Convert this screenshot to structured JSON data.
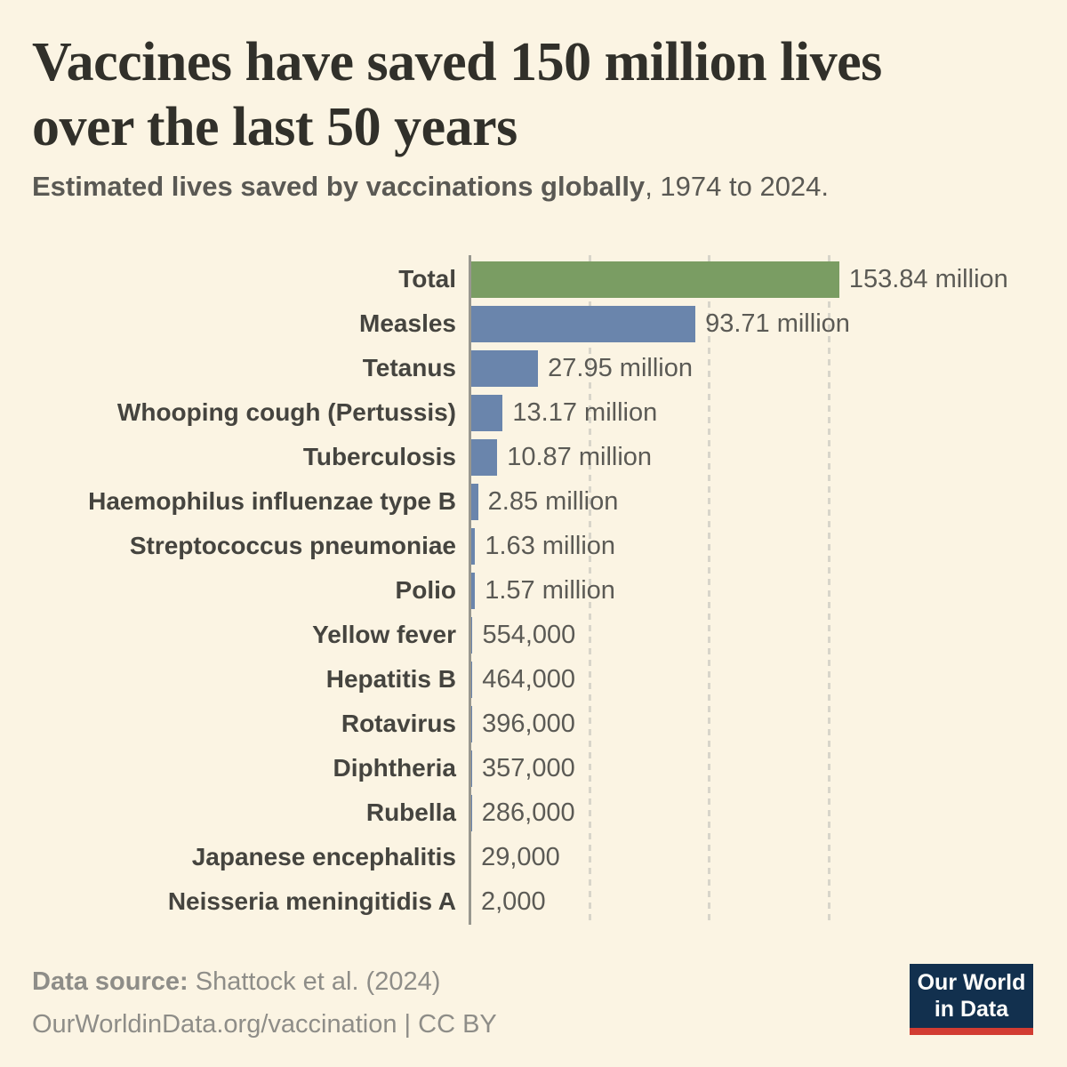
{
  "header": {
    "title_line1": "Vaccines have saved 150 million lives",
    "title_line2": "over the last 50 years",
    "subtitle_bold": "Estimated lives saved by vaccinations globally",
    "subtitle_rest": ", 1974 to 2024."
  },
  "chart_data": {
    "type": "bar",
    "orientation": "horizontal",
    "title": "Vaccines have saved 150 million lives over the last 50 years",
    "subtitle": "Estimated lives saved by vaccinations globally, 1974 to 2024.",
    "grid": true,
    "x_axis_unit": "lives saved (millions)",
    "x_gridlines_millions": [
      50,
      100,
      150
    ],
    "xlim_millions": [
      0,
      167
    ],
    "categories": [
      "Total",
      "Measles",
      "Tetanus",
      "Whooping cough (Pertussis)",
      "Tuberculosis",
      "Haemophilus influenzae type B",
      "Streptococcus pneumoniae",
      "Polio",
      "Yellow fever",
      "Hepatitis B",
      "Rotavirus",
      "Diphtheria",
      "Rubella",
      "Japanese encephalitis",
      "Neisseria meningitidis A"
    ],
    "values_millions": [
      153.84,
      93.71,
      27.95,
      13.17,
      10.87,
      2.85,
      1.63,
      1.57,
      0.554,
      0.464,
      0.396,
      0.357,
      0.286,
      0.029,
      0.002
    ],
    "value_labels": [
      "153.84 million",
      "93.71 million",
      "27.95 million",
      "13.17 million",
      "10.87 million",
      "2.85 million",
      "1.63 million",
      "1.57 million",
      "554,000",
      "464,000",
      "396,000",
      "357,000",
      "286,000",
      "29,000",
      "2,000"
    ],
    "bar_colors": {
      "total": "#7a9d63",
      "default": "#6a85ac"
    }
  },
  "footer": {
    "source_label": "Data source:",
    "source_text": " Shattock et al. (2024)",
    "attribution": "OurWorldinData.org/vaccination | CC BY",
    "logo_line1": "Our World",
    "logo_line2": "in Data"
  },
  "colors": {
    "background": "#fbf4e3",
    "title_text": "#31302a",
    "subtitle_text": "#5a5954",
    "category_label_text": "#45443f",
    "value_label_text": "#5b5a55",
    "axis_line": "#98978f",
    "gridline": "#d8d5ca",
    "footer_text": "#8e8d88",
    "logo_navy": "#12304e",
    "logo_red": "#d23c32"
  }
}
